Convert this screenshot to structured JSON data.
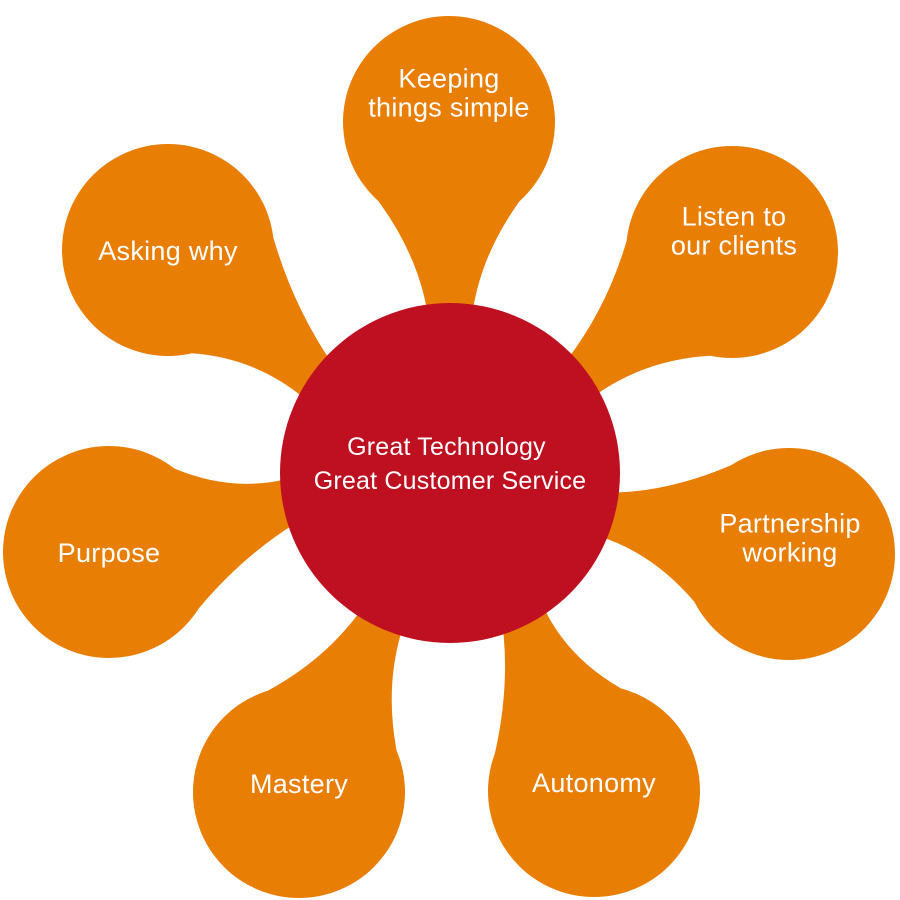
{
  "colors": {
    "center": "#BE1020",
    "petal": "#E87E04",
    "text": "#FFFFFF",
    "background": "#FFFFFF"
  },
  "center": {
    "lines": [
      "Great Technology",
      "Great Customer Service"
    ]
  },
  "petals": [
    {
      "id": "keeping-things-simple",
      "lines": [
        "Keeping",
        "things simple"
      ]
    },
    {
      "id": "listen-to-our-clients",
      "lines": [
        "Listen to",
        "our clients"
      ]
    },
    {
      "id": "partnership-working",
      "lines": [
        "Partnership",
        "working"
      ]
    },
    {
      "id": "autonomy",
      "lines": [
        "Autonomy"
      ]
    },
    {
      "id": "mastery",
      "lines": [
        "Mastery"
      ]
    },
    {
      "id": "purpose",
      "lines": [
        "Purpose"
      ]
    },
    {
      "id": "asking-why",
      "lines": [
        "Asking why"
      ]
    }
  ]
}
